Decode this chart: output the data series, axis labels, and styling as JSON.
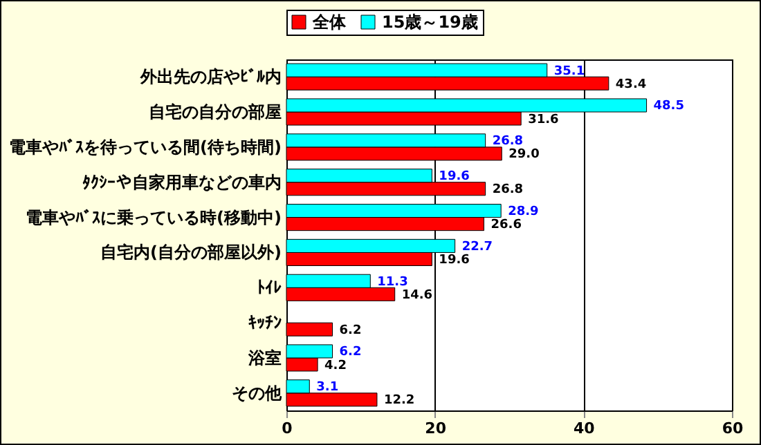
{
  "chart_data": {
    "type": "bar",
    "orientation": "horizontal",
    "categories": [
      "外出先の店やﾋﾞﾙ内",
      "自宅の自分の部屋",
      "電車やﾊﾞｽを待っている間(待ち時間)",
      "ﾀｸｼｰや自家用車などの車内",
      "電車やﾊﾞｽに乗っている時(移動中)",
      "自宅内(自分の部屋以外)",
      "ﾄｲﾚ",
      "ｷｯﾁﾝ",
      "浴室",
      "その他"
    ],
    "series": [
      {
        "name": "全体",
        "color": "#ff0000",
        "values": [
          43.4,
          31.6,
          29.0,
          26.8,
          26.6,
          19.6,
          14.6,
          6.2,
          4.2,
          12.2
        ],
        "value_labels": [
          "43.4",
          "31.6",
          "29.0",
          "26.8",
          "26.6",
          "19.6",
          "14.6",
          "6.2",
          "4.2",
          "12.2"
        ]
      },
      {
        "name": "15歳～19歳",
        "color": "#00ffff",
        "values": [
          35.1,
          48.5,
          26.8,
          19.6,
          28.9,
          22.7,
          11.3,
          null,
          6.2,
          3.1
        ],
        "value_labels": [
          "35.1",
          "48.5",
          "26.8",
          "19.6",
          "28.9",
          "22.7",
          "11.3",
          null,
          "6.2",
          "3.1"
        ]
      }
    ],
    "xlim": [
      0,
      60
    ],
    "xticks": [
      0,
      20,
      40,
      60
    ],
    "grid": "x",
    "legend": "top"
  }
}
